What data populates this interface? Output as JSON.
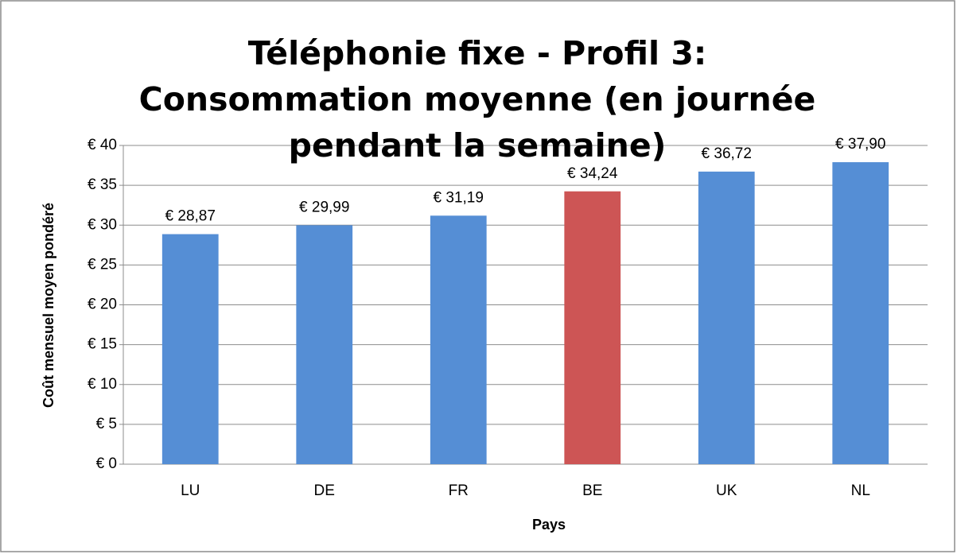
{
  "chart_data": {
    "type": "bar",
    "title": "Téléphonie fixe - Profil 3: Consommation moyenne (en journée pendant la semaine)",
    "x_label": "Pays",
    "y_label": "Coût mensuel moyen pondéré",
    "categories": [
      "LU",
      "DE",
      "FR",
      "BE",
      "UK",
      "NL"
    ],
    "values": [
      28.87,
      29.99,
      31.19,
      34.24,
      36.72,
      37.9
    ],
    "value_labels": [
      "€ 28,87",
      "€ 29,99",
      "€ 31,19",
      "€ 34,24",
      "€ 36,72",
      "€ 37,90"
    ],
    "colors": [
      "#558ed5",
      "#558ed5",
      "#558ed5",
      "#cd5555",
      "#558ed5",
      "#558ed5"
    ],
    "ylim": [
      0,
      40
    ],
    "yticks": [
      {
        "value": 0,
        "label": "€ 0"
      },
      {
        "value": 5,
        "label": "€ 5"
      },
      {
        "value": 10,
        "label": "€ 10"
      },
      {
        "value": 15,
        "label": "€ 15"
      },
      {
        "value": 20,
        "label": "€ 20"
      },
      {
        "value": 25,
        "label": "€ 25"
      },
      {
        "value": 30,
        "label": "€ 30"
      },
      {
        "value": 35,
        "label": "€ 35"
      },
      {
        "value": 40,
        "label": "€ 40"
      }
    ],
    "grid": true
  }
}
